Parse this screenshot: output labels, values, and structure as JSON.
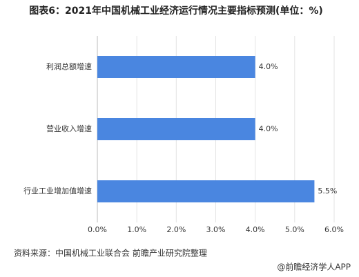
{
  "chart_data": {
    "type": "bar",
    "orientation": "horizontal",
    "title": "图表6：2021年中国机械工业经济运行情况主要指标预测(单位：%)",
    "categories": [
      "利润总额增速",
      "营业收入增速",
      "行业工业增加值增速"
    ],
    "values": [
      4.0,
      4.0,
      5.5
    ],
    "value_labels": [
      "4.0%",
      "4.0%",
      "5.5%"
    ],
    "color": "#4a86e0",
    "xlim": [
      0,
      6
    ],
    "xticks": [
      {
        "value": 0,
        "label": "0.0%"
      },
      {
        "value": 1,
        "label": "1.0%"
      },
      {
        "value": 2,
        "label": "2.0%"
      },
      {
        "value": 3,
        "label": "3.0%"
      },
      {
        "value": 4,
        "label": "4.0%"
      },
      {
        "value": 5,
        "label": "5.0%"
      },
      {
        "value": 6,
        "label": "6.0%"
      }
    ],
    "grid": true,
    "source": "资料来源：中国机械工业联合会 前瞻产业研究院整理",
    "credit": "@前瞻经济学人APP"
  }
}
